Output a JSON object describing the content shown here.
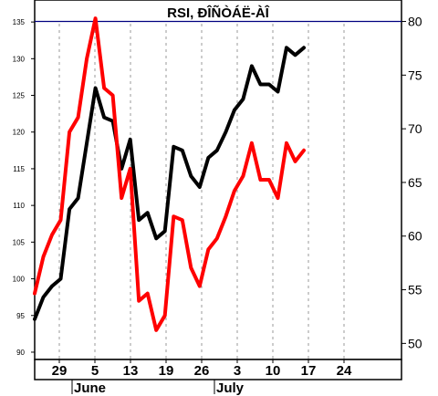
{
  "chart_data": {
    "type": "line",
    "title": "RSI, ĐÎÑÒÁË-ÀÎ",
    "x_labels": [
      "29",
      "5",
      "13",
      "19",
      "26",
      "3",
      "10",
      "17",
      "24"
    ],
    "month_labels": [
      {
        "label": "June",
        "index": 1
      },
      {
        "label": "July",
        "index": 5
      }
    ],
    "left_axis": {
      "ylim": [
        89,
        138
      ],
      "ticks": [
        90,
        95,
        100,
        105,
        110,
        115,
        120,
        125,
        130,
        135
      ]
    },
    "right_axis": {
      "ylim": [
        48.5,
        82
      ],
      "ticks": [
        50,
        55,
        60,
        65,
        70,
        75,
        80
      ],
      "reference_level": 80
    },
    "grid": "vertical dashed",
    "series": [
      {
        "color": "#000000",
        "axis": "left",
        "values": [
          94.5,
          97.5,
          99,
          100,
          109.5,
          111,
          118.5,
          126,
          122,
          121.5,
          115,
          119,
          108,
          109,
          105.5,
          106.5,
          118,
          117.5,
          114,
          112.5,
          116.5,
          117.5,
          120,
          123,
          124.5,
          129,
          126.5,
          126.5,
          125.5,
          131.5,
          130.5,
          131.5
        ]
      },
      {
        "color": "#ff0000",
        "axis": "left",
        "values": [
          98,
          103,
          106,
          108,
          120,
          122,
          130,
          135.5,
          126,
          125,
          111,
          115,
          97,
          98,
          93,
          95,
          108.5,
          108,
          101.5,
          99,
          104,
          105.5,
          108.5,
          112,
          114,
          118.5,
          113.5,
          113.5,
          111,
          118.5,
          116,
          117.5
        ]
      }
    ]
  }
}
